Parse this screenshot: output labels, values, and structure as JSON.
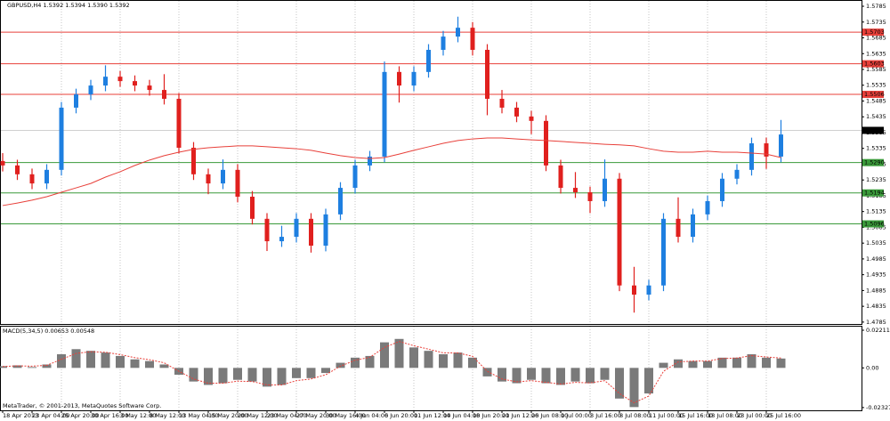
{
  "chart_data": [
    {
      "type": "candlestick",
      "title": "GBPUSD,H4  1.5392 1.5394 1.5390 1.5392",
      "categories": [
        "18 Apr 2013",
        null,
        "23 Apr 04:00",
        null,
        "25 Apr 20:00",
        null,
        "30 Apr 16:00",
        null,
        "3 May 12:00",
        null,
        "8 May 12:00",
        null,
        "13 May 04:00",
        null,
        "15 May 20:00",
        null,
        "20 May 12:00",
        null,
        "23 May 04:00",
        null,
        "27 May 20:00",
        null,
        "30 May 16:00",
        null,
        "4 Jun 04:00",
        null,
        "6 Jun 20:00",
        null,
        "11 Jun 12:00",
        null,
        "14 Jun 04:00",
        null,
        "18 Jun 20:00",
        null,
        "21 Jun 12:00",
        null,
        "26 Jun 08:00",
        null,
        "1 Jul 00:00",
        null,
        "3 Jul 16:00",
        null,
        "8 Jul 08:00",
        null,
        "11 Jul 00:00",
        null,
        "15 Jul 16:00",
        null,
        "18 Jul 08:00",
        null,
        "23 Jul 00:00",
        null,
        "25 Jul 16:00",
        null
      ],
      "open": [
        1.5295,
        1.5281,
        1.5253,
        1.5224,
        1.5267,
        1.5464,
        1.5506,
        1.5534,
        1.5562,
        1.5548,
        1.5534,
        1.552,
        1.5492,
        1.5337,
        1.5253,
        1.5224,
        1.5267,
        1.5182,
        1.5112,
        1.5041,
        1.5055,
        1.5112,
        1.5027,
        1.5126,
        1.521,
        1.5281,
        1.5309,
        1.5577,
        1.5534,
        1.5577,
        1.5647,
        1.5689,
        1.5717,
        1.5647,
        1.5492,
        1.5464,
        1.5436,
        1.5422,
        1.5281,
        1.521,
        1.5196,
        1.5168,
        1.5239,
        1.4901,
        1.4872,
        1.4901,
        1.5112,
        1.5055,
        1.5126,
        1.5168,
        1.5239,
        1.5267,
        1.5351,
        1.5309
      ],
      "high": [
        1.532,
        1.5299,
        1.5271,
        1.5285,
        1.5482,
        1.5524,
        1.5552,
        1.5598,
        1.558,
        1.5566,
        1.5552,
        1.557,
        1.551,
        1.5355,
        1.5271,
        1.53,
        1.5285,
        1.52,
        1.513,
        1.509,
        1.513,
        1.513,
        1.5144,
        1.5228,
        1.5299,
        1.5327,
        1.561,
        1.5595,
        1.5595,
        1.5665,
        1.5707,
        1.5752,
        1.5735,
        1.5665,
        1.552,
        1.5482,
        1.5454,
        1.544,
        1.5299,
        1.526,
        1.5214,
        1.53,
        1.5257,
        1.496,
        1.4919,
        1.513,
        1.518,
        1.5144,
        1.5186,
        1.5257,
        1.5285,
        1.5369,
        1.5369,
        1.5425
      ],
      "low": [
        1.5262,
        1.5235,
        1.5206,
        1.5206,
        1.5249,
        1.5446,
        1.5488,
        1.5516,
        1.553,
        1.5516,
        1.5502,
        1.5474,
        1.5319,
        1.5235,
        1.519,
        1.5206,
        1.5164,
        1.5094,
        1.501,
        1.5023,
        1.5037,
        1.5005,
        1.5009,
        1.5108,
        1.5192,
        1.5263,
        1.5291,
        1.548,
        1.5516,
        1.5559,
        1.5629,
        1.5671,
        1.5629,
        1.544,
        1.5446,
        1.5418,
        1.538,
        1.5263,
        1.5192,
        1.5178,
        1.513,
        1.515,
        1.4883,
        1.4815,
        1.4854,
        1.4883,
        1.5037,
        1.5037,
        1.5108,
        1.515,
        1.5221,
        1.5249,
        1.527,
        1.5291
      ],
      "close": [
        1.5281,
        1.5253,
        1.5224,
        1.5267,
        1.5464,
        1.5506,
        1.5534,
        1.5562,
        1.5548,
        1.5534,
        1.552,
        1.5492,
        1.5337,
        1.5253,
        1.5224,
        1.5267,
        1.5182,
        1.5112,
        1.5041,
        1.5055,
        1.5112,
        1.5027,
        1.5126,
        1.521,
        1.5281,
        1.5309,
        1.5577,
        1.5534,
        1.5577,
        1.5647,
        1.5689,
        1.5717,
        1.5647,
        1.5492,
        1.5464,
        1.5436,
        1.5422,
        1.5281,
        1.521,
        1.5196,
        1.5168,
        1.5239,
        1.4901,
        1.4872,
        1.4901,
        1.5112,
        1.5055,
        1.5126,
        1.5168,
        1.5239,
        1.5267,
        1.5351,
        1.5309,
        1.5379
      ],
      "up_color": "#1e7fe0",
      "down_color": "#e0201e",
      "ma_values": [
        1.5154,
        1.5162,
        1.5171,
        1.5182,
        1.5196,
        1.521,
        1.5224,
        1.5244,
        1.5261,
        1.5281,
        1.5298,
        1.5312,
        1.5323,
        1.5332,
        1.5337,
        1.534,
        1.5343,
        1.5343,
        1.534,
        1.5337,
        1.5334,
        1.5329,
        1.532,
        1.5312,
        1.5306,
        1.5303,
        1.5306,
        1.5317,
        1.5329,
        1.534,
        1.5351,
        1.536,
        1.5365,
        1.5368,
        1.5368,
        1.5365,
        1.5362,
        1.536,
        1.5357,
        1.5354,
        1.5351,
        1.5348,
        1.5346,
        1.5343,
        1.5334,
        1.5326,
        1.5323,
        1.5323,
        1.5326,
        1.5323,
        1.5323,
        1.532,
        1.5317,
        1.5306
      ],
      "ma_color": "#e8403a",
      "levels": [
        {
          "value": 1.5703,
          "label": "1.5703",
          "color": "#e8403a"
        },
        {
          "value": 1.5603,
          "label": "1.5603",
          "color": "#e8403a"
        },
        {
          "value": 1.5506,
          "label": "1.5506",
          "color": "#e8403a"
        },
        {
          "value": 1.529,
          "label": "1.5290",
          "color": "#3a9a3a"
        },
        {
          "value": 1.5194,
          "label": "1.5194",
          "color": "#3a9a3a"
        },
        {
          "value": 1.5096,
          "label": "1.5096",
          "color": "#3a9a3a"
        }
      ],
      "current": {
        "value": 1.5392,
        "label": "1.5392",
        "color": "#000000"
      },
      "ylim": [
        1.4779,
        1.5802
      ],
      "yticks": [
        1.5785,
        1.5735,
        1.5685,
        1.5635,
        1.5585,
        1.5535,
        1.5485,
        1.5435,
        1.5385,
        1.5335,
        1.5285,
        1.5235,
        1.5185,
        1.5135,
        1.5085,
        1.5035,
        1.4985,
        1.4935,
        1.4885,
        1.4835,
        1.4785
      ],
      "grid": true
    },
    {
      "type": "macd",
      "title": "MACD(5,34,5) 0.00653 0.00548",
      "values": [
        0.001,
        0.0015,
        0.0005,
        0.002,
        0.008,
        0.011,
        0.01,
        0.009,
        0.007,
        0.005,
        0.004,
        0.002,
        -0.004,
        -0.008,
        -0.01,
        -0.009,
        -0.007,
        -0.008,
        -0.011,
        -0.01,
        -0.006,
        -0.006,
        -0.003,
        0.003,
        0.006,
        0.007,
        0.015,
        0.017,
        0.012,
        0.01,
        0.008,
        0.009,
        0.006,
        -0.005,
        -0.008,
        -0.009,
        -0.007,
        -0.009,
        -0.01,
        -0.008,
        -0.009,
        -0.007,
        -0.018,
        -0.023,
        -0.015,
        0.003,
        0.005,
        0.004,
        0.004,
        0.006,
        0.006,
        0.008,
        0.006,
        0.0055
      ],
      "signal": [
        0.0008,
        0.0012,
        0.001,
        0.0015,
        0.005,
        0.0085,
        0.0095,
        0.0092,
        0.0078,
        0.006,
        0.0048,
        0.003,
        -0.002,
        -0.0065,
        -0.009,
        -0.009,
        -0.0078,
        -0.008,
        -0.01,
        -0.01,
        -0.0075,
        -0.0065,
        -0.004,
        0.001,
        0.0045,
        0.0062,
        0.012,
        0.0155,
        0.013,
        0.011,
        0.0088,
        0.0088,
        0.0068,
        -0.002,
        -0.0065,
        -0.0082,
        -0.0075,
        -0.0085,
        -0.0095,
        -0.0085,
        -0.0088,
        -0.0075,
        -0.015,
        -0.0205,
        -0.0165,
        -0.002,
        0.0035,
        0.004,
        0.004,
        0.0055,
        0.0058,
        0.0072,
        0.0064,
        0.0058
      ],
      "color": "#7a7a7a",
      "signal_color": "#e8403a",
      "ylim": [
        -0.0249,
        0.0242
      ],
      "yticks": [
        0.02211,
        {
          "value": 0,
          "label": "0.00"
        },
        -0.02327
      ]
    }
  ],
  "footer": "MetaTrader, © 2001-2013, MetaQuotes Software Corp."
}
